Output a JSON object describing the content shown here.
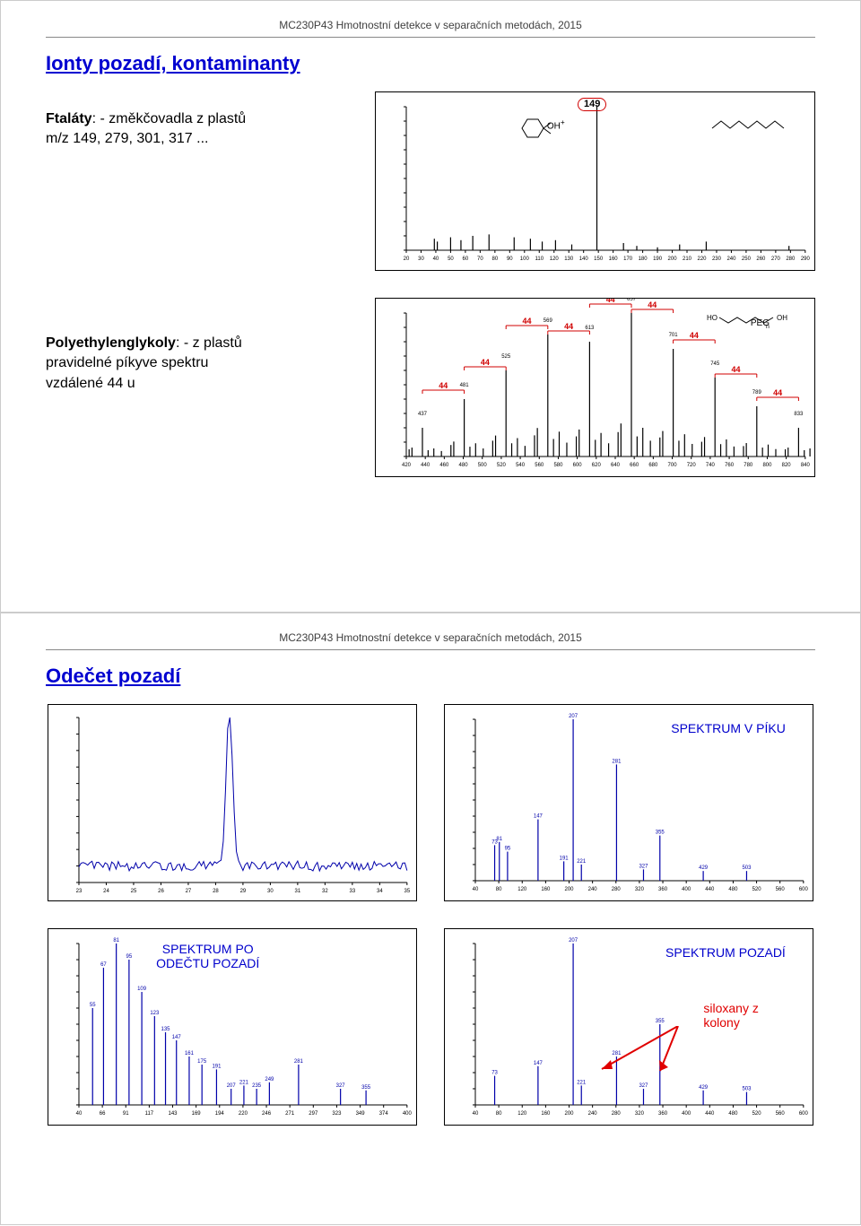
{
  "header_text": "MC230P43  Hmotnostní detekce v separačních metodách, 2015",
  "slide1": {
    "title": "Ionty pozadí, kontaminanty",
    "block1": {
      "label_bold": "Ftaláty",
      "label_rest": ": - změkčovadla z plastů",
      "line2": "m/z 149, 279, 301, 317 ...",
      "badge": "149",
      "oh": "OH"
    },
    "block2": {
      "label_bold": "Polyethylenglykoly",
      "label_rest": ": - z plastů",
      "line2": "pravidelné píkyve spektru",
      "line3": "vzdálené 44 u",
      "peg": "PEG",
      "delta_marks": [
        "44",
        "44",
        "44",
        "44",
        "44",
        "44",
        "44"
      ]
    },
    "phthalate_chart": {
      "type": "mass-spectrum",
      "xrange": [
        20,
        290
      ],
      "yrange": [
        0,
        100
      ],
      "base_peak": 149,
      "peaks_mz": [
        39,
        41,
        50,
        57,
        65,
        76,
        93,
        104,
        112,
        121,
        132,
        149,
        167,
        176,
        190,
        205,
        223,
        279
      ],
      "peaks_int": [
        8,
        6,
        9,
        7,
        10,
        11,
        9,
        8,
        6,
        7,
        4,
        100,
        5,
        3,
        2,
        4,
        6,
        3
      ],
      "bar_color": "#000000",
      "axis_label_fontsize": 6
    },
    "peg_chart": {
      "type": "mass-spectrum",
      "xrange": [
        420,
        840
      ],
      "yrange": [
        0,
        100
      ],
      "cluster_mz": [
        437,
        481,
        525,
        569,
        613,
        657,
        701,
        745,
        789,
        833
      ],
      "cluster_int": [
        20,
        40,
        60,
        85,
        80,
        100,
        75,
        55,
        35,
        20
      ],
      "satellite_offsets": [
        -14,
        -11,
        6,
        12,
        20
      ],
      "satellite_int": [
        5,
        7,
        4,
        6,
        3
      ],
      "bar_color": "#000000",
      "delta_color": "#d00000",
      "delta_label": "44"
    }
  },
  "slide2": {
    "title": "Odečet pozadí",
    "labels": {
      "tic": "",
      "spectrum_in_peak": "SPEKTRUM V PÍKU",
      "spectrum_after_sub": "SPEKTRUM PO\nODEČTU POZADÍ",
      "spectrum_bg": "SPEKTRUM POZADÍ",
      "siloxanes": "siloxany z\nkolony"
    },
    "tic_chart": {
      "type": "line",
      "xrange": [
        23,
        35
      ],
      "yrange": [
        0,
        100
      ],
      "peak_rt": 28.5,
      "peak_h": 95,
      "baseline": 10,
      "line_color": "#0000aa",
      "noise_amp": 3
    },
    "spec_peak": {
      "type": "mass-spectrum",
      "xrange": [
        40,
        600
      ],
      "yrange": [
        0,
        100
      ],
      "peaks_mz": [
        73,
        81,
        95,
        147,
        191,
        207,
        221,
        281,
        327,
        355,
        429,
        503
      ],
      "peaks_int": [
        22,
        24,
        18,
        38,
        12,
        100,
        10,
        72,
        7,
        28,
        6,
        6
      ],
      "bar_color": "#0000aa"
    },
    "spec_sub": {
      "type": "mass-spectrum",
      "xrange": [
        40,
        400
      ],
      "yrange": [
        0,
        100
      ],
      "peaks_mz": [
        55,
        67,
        81,
        95,
        109,
        123,
        135,
        147,
        161,
        175,
        191,
        207,
        221,
        235,
        249,
        281,
        327,
        355
      ],
      "peaks_int": [
        60,
        85,
        100,
        90,
        70,
        55,
        45,
        40,
        30,
        25,
        22,
        10,
        12,
        10,
        14,
        25,
        10,
        9
      ],
      "bar_color": "#0000aa"
    },
    "spec_bg": {
      "type": "mass-spectrum",
      "xrange": [
        40,
        600
      ],
      "yrange": [
        0,
        100
      ],
      "peaks_mz": [
        73,
        147,
        207,
        221,
        281,
        327,
        355,
        429,
        503
      ],
      "peaks_int": [
        18,
        24,
        100,
        12,
        30,
        10,
        50,
        9,
        8
      ],
      "bar_color": "#0000aa"
    }
  },
  "colors": {
    "title": "#0000d0",
    "red": "#e00000",
    "blue_text": "#0000cc",
    "bar_blue": "#0000aa",
    "black": "#000000"
  }
}
